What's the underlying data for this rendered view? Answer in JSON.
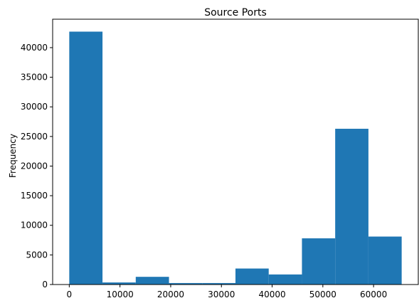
{
  "chart_data": {
    "type": "bar",
    "title": "Source Ports",
    "xlabel": "",
    "ylabel": "Frequency",
    "xlim": [
      -3277,
      68817
    ],
    "ylim": [
      0,
      44800
    ],
    "grid": false,
    "bar_color": "#1f77b4",
    "bins": [
      {
        "start": 0,
        "end": 6554,
        "value": 42700
      },
      {
        "start": 6554,
        "end": 13108,
        "value": 350
      },
      {
        "start": 13108,
        "end": 19662,
        "value": 1300
      },
      {
        "start": 19662,
        "end": 26216,
        "value": 250
      },
      {
        "start": 26216,
        "end": 32770,
        "value": 250
      },
      {
        "start": 32770,
        "end": 39324,
        "value": 2700
      },
      {
        "start": 39324,
        "end": 45878,
        "value": 1700
      },
      {
        "start": 45878,
        "end": 52432,
        "value": 7800
      },
      {
        "start": 52432,
        "end": 58986,
        "value": 26300
      },
      {
        "start": 58986,
        "end": 65540,
        "value": 8100
      }
    ],
    "xticks": [
      {
        "value": 0,
        "label": "0"
      },
      {
        "value": 10000,
        "label": "10000"
      },
      {
        "value": 20000,
        "label": "20000"
      },
      {
        "value": 30000,
        "label": "30000"
      },
      {
        "value": 40000,
        "label": "40000"
      },
      {
        "value": 50000,
        "label": "50000"
      },
      {
        "value": 60000,
        "label": "60000"
      }
    ],
    "yticks": [
      {
        "value": 0,
        "label": "0"
      },
      {
        "value": 5000,
        "label": "5000"
      },
      {
        "value": 10000,
        "label": "10000"
      },
      {
        "value": 15000,
        "label": "15000"
      },
      {
        "value": 20000,
        "label": "20000"
      },
      {
        "value": 25000,
        "label": "25000"
      },
      {
        "value": 30000,
        "label": "30000"
      },
      {
        "value": 35000,
        "label": "35000"
      },
      {
        "value": 40000,
        "label": "40000"
      }
    ]
  }
}
